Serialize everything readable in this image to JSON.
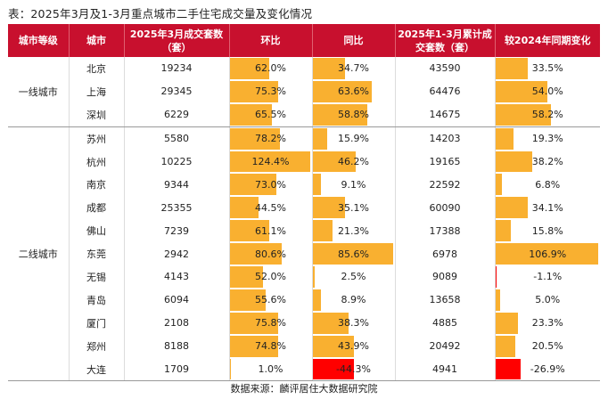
{
  "title": "表：2025年3月及1-3月重点城市二手住宅成交量及变化情况",
  "headers": [
    "城市等级",
    "城市",
    "2025年3月成交套数（套）",
    "环比",
    "同比",
    "2025年1-3月累计成交套数（套）",
    "较2024年同期变化"
  ],
  "tiers": [
    {
      "name": "一线城市",
      "rows": [
        {
          "city": "北京",
          "m": "19234",
          "mom": "62.0%",
          "momv": 62.0,
          "yoy": "34.7%",
          "yoyv": 34.7,
          "cum": "43590",
          "chg": "33.5%",
          "chgv": 33.5
        },
        {
          "city": "上海",
          "m": "29345",
          "mom": "75.3%",
          "momv": 75.3,
          "yoy": "63.6%",
          "yoyv": 63.6,
          "cum": "64476",
          "chg": "54.0%",
          "chgv": 54.0
        },
        {
          "city": "深圳",
          "m": "6229",
          "mom": "65.5%",
          "momv": 65.5,
          "yoy": "58.8%",
          "yoyv": 58.8,
          "cum": "14675",
          "chg": "58.2%",
          "chgv": 58.2
        }
      ]
    },
    {
      "name": "二线城市",
      "rows": [
        {
          "city": "苏州",
          "m": "5580",
          "mom": "78.2%",
          "momv": 78.2,
          "yoy": "15.9%",
          "yoyv": 15.9,
          "cum": "14203",
          "chg": "19.3%",
          "chgv": 19.3
        },
        {
          "city": "杭州",
          "m": "10225",
          "mom": "124.4%",
          "momv": 124.4,
          "yoy": "46.2%",
          "yoyv": 46.2,
          "cum": "19165",
          "chg": "38.2%",
          "chgv": 38.2
        },
        {
          "city": "南京",
          "m": "9344",
          "mom": "73.0%",
          "momv": 73.0,
          "yoy": "9.1%",
          "yoyv": 9.1,
          "cum": "22592",
          "chg": "6.8%",
          "chgv": 6.8
        },
        {
          "city": "成都",
          "m": "25355",
          "mom": "44.5%",
          "momv": 44.5,
          "yoy": "35.1%",
          "yoyv": 35.1,
          "cum": "60090",
          "chg": "34.1%",
          "chgv": 34.1
        },
        {
          "city": "佛山",
          "m": "7239",
          "mom": "61.1%",
          "momv": 61.1,
          "yoy": "21.3%",
          "yoyv": 21.3,
          "cum": "17388",
          "chg": "15.8%",
          "chgv": 15.8
        },
        {
          "city": "东莞",
          "m": "2942",
          "mom": "80.6%",
          "momv": 80.6,
          "yoy": "85.6%",
          "yoyv": 85.6,
          "cum": "6978",
          "chg": "106.9%",
          "chgv": 106.9
        },
        {
          "city": "无锡",
          "m": "4143",
          "mom": "52.0%",
          "momv": 52.0,
          "yoy": "2.5%",
          "yoyv": 2.5,
          "cum": "9089",
          "chg": "-1.1%",
          "chgv": -1.1
        },
        {
          "city": "青岛",
          "m": "6094",
          "mom": "55.6%",
          "momv": 55.6,
          "yoy": "8.9%",
          "yoyv": 8.9,
          "cum": "13658",
          "chg": "5.0%",
          "chgv": 5.0
        },
        {
          "city": "厦门",
          "m": "2108",
          "mom": "75.8%",
          "momv": 75.8,
          "yoy": "38.3%",
          "yoyv": 38.3,
          "cum": "4885",
          "chg": "23.3%",
          "chgv": 23.3
        },
        {
          "city": "郑州",
          "m": "8188",
          "mom": "74.8%",
          "momv": 74.8,
          "yoy": "43.9%",
          "yoyv": 43.9,
          "cum": "20492",
          "chg": "20.5%",
          "chgv": 20.5
        },
        {
          "city": "大连",
          "m": "1709",
          "mom": "1.0%",
          "momv": 1.0,
          "yoy": "-44.3%",
          "yoyv": -44.3,
          "cum": "4941",
          "chg": "-26.9%",
          "chgv": -26.9
        }
      ]
    }
  ],
  "source": "数据来源：麟评居住大数据研究院",
  "colors": {
    "header": "#c8102e",
    "pos_bar": "#f9b030",
    "neg_bar": "#ff0000"
  }
}
